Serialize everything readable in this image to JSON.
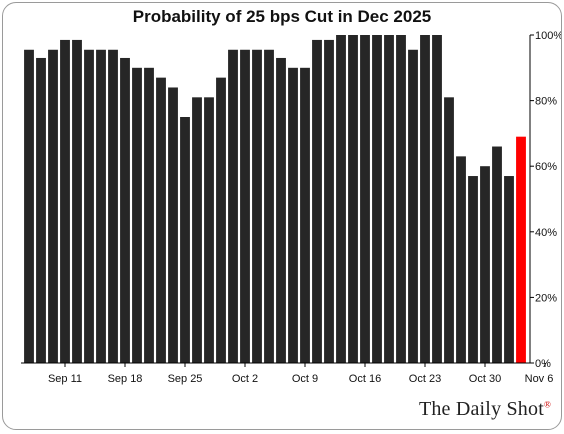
{
  "chart_data": {
    "type": "bar",
    "title": "Probability of 25 bps Cut in Dec 2025",
    "ylim": [
      0,
      100
    ],
    "y_ticks": [
      "0%",
      "20%",
      "40%",
      "60%",
      "80%",
      "100%"
    ],
    "y_tick_values": [
      0,
      20,
      40,
      60,
      80,
      100
    ],
    "x_tick_labels": [
      "Sep 11",
      "Sep 18",
      "Sep 25",
      "Oct 2",
      "Oct 9",
      "Oct 16",
      "Oct 23",
      "Oct 30",
      "Nov 6"
    ],
    "x_tick_positions": [
      3,
      8,
      13,
      18,
      23,
      28,
      33,
      38,
      43
    ],
    "values": [
      95.5,
      93,
      95.5,
      98.5,
      98.5,
      95.5,
      95.5,
      95.5,
      93,
      90,
      90,
      87,
      84,
      75,
      81,
      81,
      87,
      95.5,
      95.5,
      95.5,
      95.5,
      93,
      90,
      90,
      98.5,
      98.5,
      100,
      100,
      100,
      100,
      100,
      100,
      95.5,
      100,
      100,
      81,
      63,
      57,
      60,
      66,
      57,
      69
    ],
    "highlight_index": 41,
    "grid": false,
    "legend": "none",
    "y_axis_position": "right"
  },
  "colors": {
    "bar": "#262626",
    "highlight": "#ff0000",
    "axis": "#000000",
    "text": "#111111"
  },
  "brand": {
    "name": "The Daily Shot",
    "mark": "®"
  }
}
